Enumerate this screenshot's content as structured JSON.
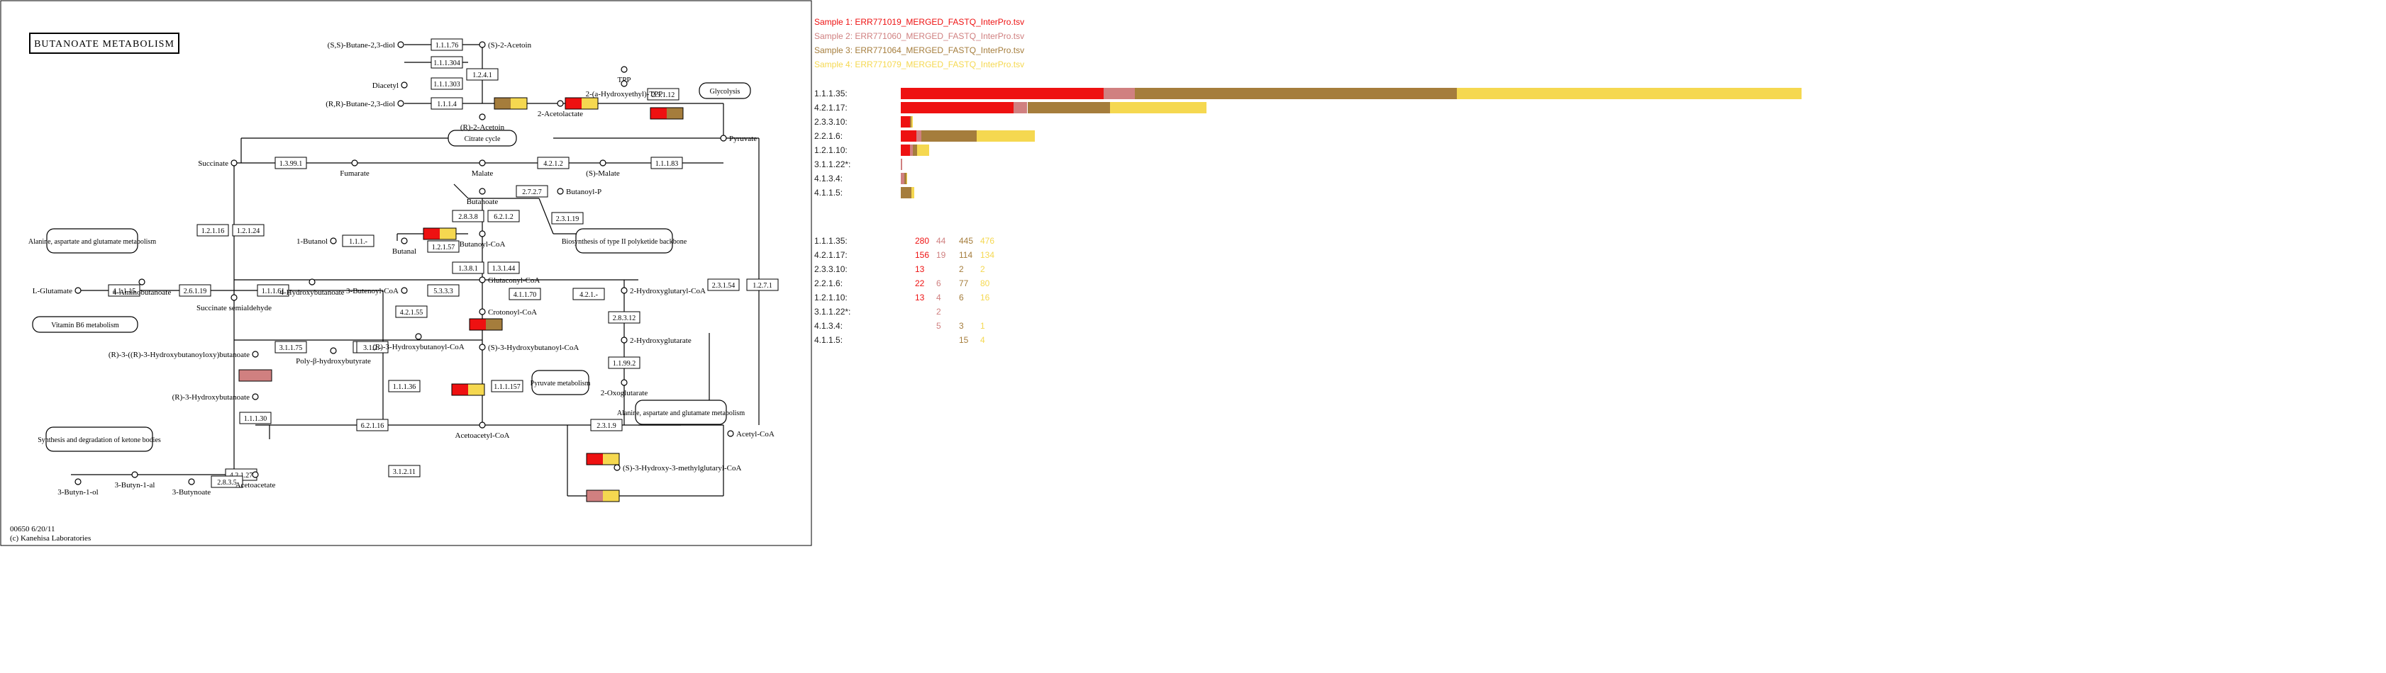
{
  "map": {
    "title": "BUTANOATE METABOLISM",
    "footer_code": "00650 6/20/11",
    "footer_copyright": "(c) Kanehisa Laboratories",
    "compounds": [
      "(S,S)-Butane-2,3-diol",
      "(S)-2-Acetoin",
      "Diacetyl",
      "(R,R)-Butane-2,3-diol",
      "(R)-2-Acetoin",
      "2-Acetolactate",
      "TPP",
      "2-(a-Hydroxyethyl)-TPP",
      "Pyruvate",
      "Succinate",
      "Fumarate",
      "Malate",
      "(S)-Malate",
      "Butanoate",
      "Butanoyl-P",
      "Butanoyl-CoA",
      "1-Butanol",
      "Butanal",
      "L-Glutamate",
      "4-Aminobutanoate",
      "Succinate semialdehyde",
      "4-Hydroxybutanoate",
      "3-Butenoyl-CoA",
      "Glutaconyl-CoA",
      "2-Hydroxyglutaryl-CoA",
      "Crotonoyl-CoA",
      "(R)-3-Hydroxybutanoyl-CoA",
      "(S)-3-Hydroxybutanoyl-CoA",
      "2-Hydroxyglutarate",
      "(R)-3-((R)-3-Hydroxybutanoyloxy)butanoate",
      "Poly-β-hydroxybutyrate",
      "2-Oxoglutarate",
      "(R)-3-Hydroxybutanoate",
      "Acetoacetyl-CoA",
      "Acetyl-CoA",
      "3-Butyn-1-al",
      "3-Butyn-1-ol",
      "3-Butynoate",
      "Acetoacetate",
      "(S)-3-Hydroxy-3-methylglutaryl-CoA"
    ],
    "pathway_links": [
      "Glycolysis",
      "Citrate cycle",
      "Alanine, aspartate and glutamate metabolism",
      "Biosynthesis of type II polyketide backbone",
      "Vitamin B6 metabolism",
      "Pyruvate metabolism",
      "Alanine, aspartate and glutamate metabolism",
      "Synthesis and degradation of ketone bodies"
    ],
    "enzymes_plain": [
      "1.1.1.76",
      "1.1.1.304",
      "1.1.1.303",
      "1.1.1.4",
      "1.2.4.1",
      "2.3.1.12",
      "1.1.1.83",
      "4.2.1.2",
      "1.3.99.1",
      "2.8.3.8",
      "6.2.1.2",
      "2.7.2.7",
      "2.3.1.19",
      "1.2.1.57",
      "1.1.1.-",
      "1.2.1.16",
      "1.2.1.24",
      "4.1.1.15",
      "2.6.1.19",
      "1.1.1.61",
      "5.3.3.3",
      "1.3.8.1",
      "1.3.1.44",
      "4.1.1.70",
      "4.2.1.-",
      "2.8.3.12",
      "1.1.99.2",
      "4.2.1.55",
      "3.1.1.75",
      "2.3.1.-",
      "1.1.1.36",
      "1.1.1.157",
      "1.1.1.30",
      "6.2.1.16",
      "2.3.1.9",
      "4.2.1.27",
      "2.8.3.5",
      "3.1.2.11",
      "2.3.1.54",
      "1.2.7.1",
      "3.1.2.-"
    ]
  },
  "legend": {
    "samples": [
      {
        "label": "Sample 1: ERR771019_MERGED_FASTQ_InterPro.tsv",
        "color": "#ee1111"
      },
      {
        "label": "Sample 2: ERR771060_MERGED_FASTQ_InterPro.tsv",
        "color": "#d08080"
      },
      {
        "label": "Sample 3: ERR771064_MERGED_FASTQ_InterPro.tsv",
        "color": "#a57d3c"
      },
      {
        "label": "Sample 4: ERR771079_MERGED_FASTQ_InterPro.tsv",
        "color": "#f5d850"
      }
    ]
  },
  "chart_data": {
    "type": "bar",
    "stacked": true,
    "orientation": "horizontal",
    "categories": [
      "1.1.1.35:",
      "4.2.1.17:",
      "2.3.3.10:",
      "2.2.1.6:",
      "1.2.1.10:",
      "3.1.1.22*:",
      "4.1.3.4:",
      "4.1.1.5:"
    ],
    "series": [
      {
        "name": "Sample 1: ERR771019_MERGED_FASTQ_InterPro.tsv",
        "values": [
          280,
          156,
          13,
          22,
          13,
          0,
          0,
          0
        ]
      },
      {
        "name": "Sample 2: ERR771060_MERGED_FASTQ_InterPro.tsv",
        "values": [
          44,
          19,
          0,
          6,
          4,
          2,
          5,
          0
        ]
      },
      {
        "name": "Sample 3: ERR771064_MERGED_FASTQ_InterPro.tsv",
        "values": [
          445,
          114,
          2,
          77,
          6,
          0,
          3,
          15
        ]
      },
      {
        "name": "Sample 4: ERR771079_MERGED_FASTQ_InterPro.tsv",
        "values": [
          476,
          134,
          2,
          80,
          16,
          0,
          1,
          4
        ]
      }
    ]
  },
  "table": {
    "rows": [
      {
        "label": "1.1.1.35:",
        "values": [
          "280",
          "44",
          "445",
          "476"
        ]
      },
      {
        "label": "4.2.1.17:",
        "values": [
          "156",
          "19",
          "114",
          "134"
        ]
      },
      {
        "label": "2.3.3.10:",
        "values": [
          "13",
          "",
          "2",
          "2"
        ]
      },
      {
        "label": "2.2.1.6:",
        "values": [
          "22",
          "6",
          "77",
          "80"
        ]
      },
      {
        "label": "1.2.1.10:",
        "values": [
          "13",
          "4",
          "6",
          "16"
        ]
      },
      {
        "label": "3.1.1.22*:",
        "values": [
          "",
          "2",
          "",
          ""
        ]
      },
      {
        "label": "4.1.3.4:",
        "values": [
          "",
          "5",
          "3",
          "1"
        ]
      },
      {
        "label": "4.1.1.5:",
        "values": [
          "",
          "",
          "15",
          "4"
        ]
      }
    ]
  }
}
